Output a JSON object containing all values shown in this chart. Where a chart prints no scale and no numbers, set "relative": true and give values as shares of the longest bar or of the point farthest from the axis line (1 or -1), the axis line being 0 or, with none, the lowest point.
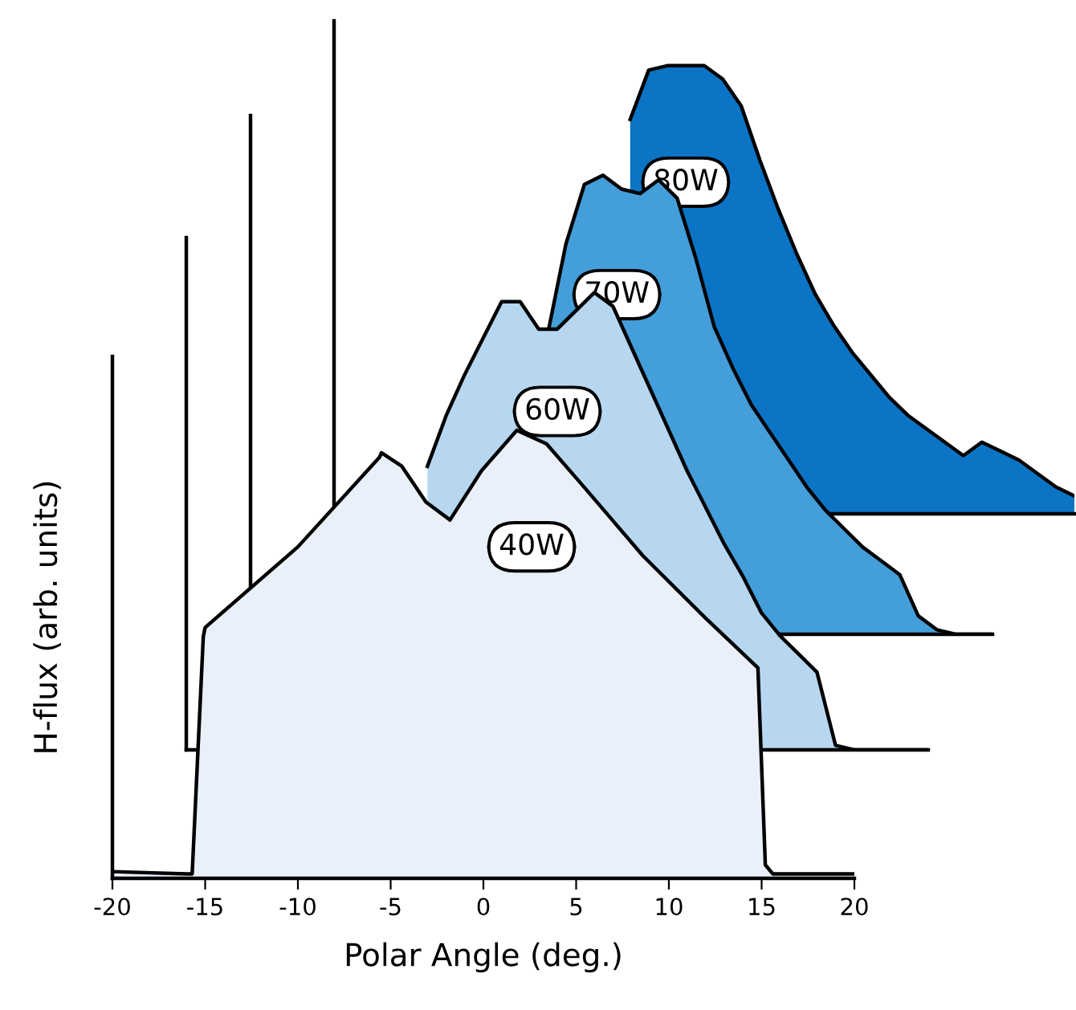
{
  "chart_data": [
    {
      "type": "area",
      "relative": true,
      "xlabel": "Polar Angle (deg.)",
      "ylabel": "H-flux (arb. units)",
      "xlim": [
        -20,
        20
      ],
      "xticks": [
        -20,
        -15,
        -10,
        -5,
        0,
        5,
        10,
        15,
        20
      ],
      "tick_labels": "x",
      "series": [
        {
          "name": "40W",
          "color": "#e9f0f9",
          "x": [
            -20,
            -16,
            -15.7,
            -15.1,
            -15,
            -10,
            -5.6,
            -5.5,
            -4.4,
            -3.1,
            -1.8,
            -0.1,
            1.8,
            3.4,
            5.5,
            8.6,
            12,
            14.8,
            15.2,
            15.6,
            20
          ],
          "values": [
            0.015,
            0.01,
            0.01,
            0.54,
            0.56,
            0.74,
            0.94,
            0.95,
            0.92,
            0.84,
            0.8,
            0.91,
            1.0,
            0.97,
            0.87,
            0.72,
            0.58,
            0.47,
            0.03,
            0.01,
            0.01
          ]
        }
      ]
    },
    {
      "type": "area",
      "relative": true,
      "categories": [
        null,
        null,
        null,
        null,
        null,
        null,
        null,
        null,
        null,
        null,
        null,
        null,
        null,
        null,
        null,
        null,
        null,
        null,
        null,
        null,
        null,
        null,
        null,
        null,
        null,
        null,
        null,
        null,
        null,
        null,
        null,
        null,
        null,
        null,
        null,
        null,
        null,
        null,
        null,
        null,
        null
      ],
      "series": [
        {
          "name": "60W",
          "color": "#b7d7f0",
          "values": [
            null,
            null,
            null,
            null,
            null,
            null,
            null,
            null,
            null,
            null,
            null,
            null,
            null,
            0.62,
            0.73,
            0.82,
            0.9,
            0.98,
            0.98,
            0.92,
            0.92,
            0.96,
            1.0,
            0.97,
            0.88,
            0.79,
            0.7,
            0.61,
            0.53,
            0.45,
            0.38,
            0.3,
            0.25,
            0.21,
            0.17,
            0.01,
            0,
            0,
            0,
            0,
            0
          ]
        }
      ]
    },
    {
      "type": "area",
      "relative": true,
      "categories": [
        null,
        null,
        null,
        null,
        null,
        null,
        null,
        null,
        null,
        null,
        null,
        null,
        null,
        null,
        null,
        null,
        null,
        null,
        null,
        null,
        null,
        null,
        null,
        null,
        null,
        null,
        null,
        null,
        null,
        null,
        null,
        null,
        null,
        null,
        null,
        null,
        null,
        null,
        null,
        null,
        null
      ],
      "series": [
        {
          "name": "70W",
          "color": "#449ed9",
          "values": [
            null,
            null,
            null,
            null,
            null,
            null,
            null,
            null,
            null,
            null,
            null,
            null,
            null,
            null,
            null,
            null,
            0.65,
            0.85,
            0.98,
            1.0,
            0.97,
            0.96,
            0.99,
            0.95,
            0.82,
            0.67,
            0.58,
            0.5,
            0.44,
            0.38,
            0.32,
            0.27,
            0.23,
            0.19,
            0.16,
            0.13,
            0.04,
            0.01,
            0,
            0,
            0
          ]
        }
      ]
    },
    {
      "type": "area",
      "relative": true,
      "categories": [
        null,
        null,
        null,
        null,
        null,
        null,
        null,
        null,
        null,
        null,
        null,
        null,
        null,
        null,
        null,
        null,
        null,
        null,
        null,
        null,
        null,
        null,
        null,
        null,
        null,
        null,
        null,
        null,
        null,
        null,
        null,
        null,
        null,
        null,
        null,
        null,
        null,
        null,
        null,
        null,
        null
      ],
      "series": [
        {
          "name": "80W",
          "color": "#0b74c4",
          "values": [
            null,
            null,
            null,
            null,
            null,
            null,
            null,
            null,
            null,
            null,
            null,
            null,
            null,
            null,
            null,
            null,
            0.88,
            0.99,
            1.0,
            1.0,
            1.0,
            0.97,
            0.91,
            0.79,
            0.68,
            0.58,
            0.49,
            0.42,
            0.36,
            0.31,
            0.26,
            0.22,
            0.19,
            0.16,
            0.13,
            0.16,
            0.14,
            0.12,
            0.09,
            0.06,
            0.04
          ]
        }
      ]
    }
  ]
}
